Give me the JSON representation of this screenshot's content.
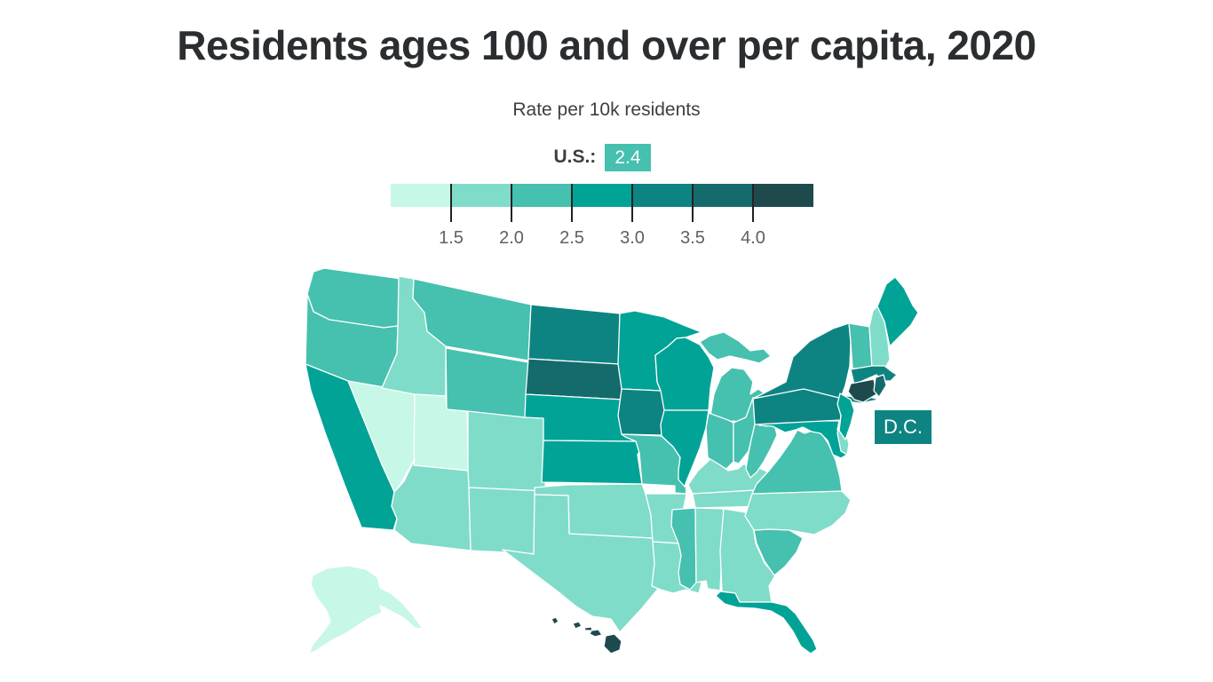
{
  "header": {
    "title": "Residents ages 100 and over per capita, 2020",
    "subtitle": "Rate per 10k residents"
  },
  "legend": {
    "us_label": "U.S.:",
    "us_value": "2.4",
    "us_badge_color": "#46c0af",
    "dc_badge_color": "#0e8482",
    "ticks": [
      "1.5",
      "2.0",
      "2.5",
      "3.0",
      "3.5",
      "4.0"
    ],
    "bins": [
      {
        "label": "<1.5",
        "color": "#c6f7e7"
      },
      {
        "label": "1.5–2.0",
        "color": "#7fdcc8"
      },
      {
        "label": "2.0–2.5",
        "color": "#46c0af"
      },
      {
        "label": "2.5–3.0",
        "color": "#00a396"
      },
      {
        "label": "3.0–3.5",
        "color": "#0e8482"
      },
      {
        "label": "3.5–4.0",
        "color": "#156a6c"
      },
      {
        "label": "4.0+",
        "color": "#1e4a4e"
      }
    ]
  },
  "dc_label": "D.C.",
  "chart_data": {
    "type": "choropleth-map",
    "title": "Residents ages 100 and over per capita, 2020",
    "unit": "Rate per 10k residents",
    "us_value": 2.4,
    "scale_ticks": [
      1.5,
      2.0,
      2.5,
      3.0,
      3.5,
      4.0
    ],
    "states": [
      {
        "code": "WA",
        "name": "Washington",
        "bin": 3,
        "rate_bin": "2.0–2.5"
      },
      {
        "code": "OR",
        "name": "Oregon",
        "bin": 3,
        "rate_bin": "2.0–2.5"
      },
      {
        "code": "CA",
        "name": "California",
        "bin": 4,
        "rate_bin": "2.5–3.0"
      },
      {
        "code": "NV",
        "name": "Nevada",
        "bin": 1,
        "rate_bin": "<1.5"
      },
      {
        "code": "ID",
        "name": "Idaho",
        "bin": 2,
        "rate_bin": "1.5–2.0"
      },
      {
        "code": "MT",
        "name": "Montana",
        "bin": 3,
        "rate_bin": "2.0–2.5"
      },
      {
        "code": "WY",
        "name": "Wyoming",
        "bin": 3,
        "rate_bin": "2.0–2.5"
      },
      {
        "code": "UT",
        "name": "Utah",
        "bin": 1,
        "rate_bin": "<1.5"
      },
      {
        "code": "CO",
        "name": "Colorado",
        "bin": 2,
        "rate_bin": "1.5–2.0"
      },
      {
        "code": "AZ",
        "name": "Arizona",
        "bin": 2,
        "rate_bin": "1.5–2.0"
      },
      {
        "code": "NM",
        "name": "New Mexico",
        "bin": 2,
        "rate_bin": "1.5–2.0"
      },
      {
        "code": "TX",
        "name": "Texas",
        "bin": 2,
        "rate_bin": "1.5–2.0"
      },
      {
        "code": "OK",
        "name": "Oklahoma",
        "bin": 2,
        "rate_bin": "1.5–2.0"
      },
      {
        "code": "KS",
        "name": "Kansas",
        "bin": 4,
        "rate_bin": "2.5–3.0"
      },
      {
        "code": "NE",
        "name": "Nebraska",
        "bin": 4,
        "rate_bin": "2.5–3.0"
      },
      {
        "code": "SD",
        "name": "South Dakota",
        "bin": 6,
        "rate_bin": "3.5–4.0"
      },
      {
        "code": "ND",
        "name": "North Dakota",
        "bin": 5,
        "rate_bin": "3.0–3.5"
      },
      {
        "code": "MN",
        "name": "Minnesota",
        "bin": 4,
        "rate_bin": "2.5–3.0"
      },
      {
        "code": "IA",
        "name": "Iowa",
        "bin": 5,
        "rate_bin": "3.0–3.5"
      },
      {
        "code": "MO",
        "name": "Missouri",
        "bin": 3,
        "rate_bin": "2.0–2.5"
      },
      {
        "code": "AR",
        "name": "Arkansas",
        "bin": 2,
        "rate_bin": "1.5–2.0"
      },
      {
        "code": "LA",
        "name": "Louisiana",
        "bin": 2,
        "rate_bin": "1.5–2.0"
      },
      {
        "code": "WI",
        "name": "Wisconsin",
        "bin": 4,
        "rate_bin": "2.5–3.0"
      },
      {
        "code": "IL",
        "name": "Illinois",
        "bin": 4,
        "rate_bin": "2.5–3.0"
      },
      {
        "code": "MI",
        "name": "Michigan",
        "bin": 3,
        "rate_bin": "2.0–2.5"
      },
      {
        "code": "IN",
        "name": "Indiana",
        "bin": 3,
        "rate_bin": "2.0–2.5"
      },
      {
        "code": "OH",
        "name": "Ohio",
        "bin": 3,
        "rate_bin": "2.0–2.5"
      },
      {
        "code": "KY",
        "name": "Kentucky",
        "bin": 2,
        "rate_bin": "1.5–2.0"
      },
      {
        "code": "TN",
        "name": "Tennessee",
        "bin": 2,
        "rate_bin": "1.5–2.0"
      },
      {
        "code": "MS",
        "name": "Mississippi",
        "bin": 3,
        "rate_bin": "2.0–2.5"
      },
      {
        "code": "AL",
        "name": "Alabama",
        "bin": 2,
        "rate_bin": "1.5–2.0"
      },
      {
        "code": "GA",
        "name": "Georgia",
        "bin": 2,
        "rate_bin": "1.5–2.0"
      },
      {
        "code": "FL",
        "name": "Florida",
        "bin": 4,
        "rate_bin": "2.5–3.0"
      },
      {
        "code": "SC",
        "name": "South Carolina",
        "bin": 3,
        "rate_bin": "2.0–2.5"
      },
      {
        "code": "NC",
        "name": "North Carolina",
        "bin": 2,
        "rate_bin": "1.5–2.0"
      },
      {
        "code": "VA",
        "name": "Virginia",
        "bin": 3,
        "rate_bin": "2.0–2.5"
      },
      {
        "code": "WV",
        "name": "West Virginia",
        "bin": 3,
        "rate_bin": "2.0–2.5"
      },
      {
        "code": "MD",
        "name": "Maryland",
        "bin": 4,
        "rate_bin": "2.5–3.0"
      },
      {
        "code": "DE",
        "name": "Delaware",
        "bin": 2,
        "rate_bin": "1.5–2.0"
      },
      {
        "code": "NJ",
        "name": "New Jersey",
        "bin": 4,
        "rate_bin": "2.5–3.0"
      },
      {
        "code": "PA",
        "name": "Pennsylvania",
        "bin": 5,
        "rate_bin": "3.0–3.5"
      },
      {
        "code": "NY",
        "name": "New York",
        "bin": 5,
        "rate_bin": "3.0–3.5"
      },
      {
        "code": "CT",
        "name": "Connecticut",
        "bin": 7,
        "rate_bin": "4.0+"
      },
      {
        "code": "RI",
        "name": "Rhode Island",
        "bin": 6,
        "rate_bin": "3.5–4.0"
      },
      {
        "code": "MA",
        "name": "Massachusetts",
        "bin": 5,
        "rate_bin": "3.0–3.5"
      },
      {
        "code": "VT",
        "name": "Vermont",
        "bin": 3,
        "rate_bin": "2.0–2.5"
      },
      {
        "code": "NH",
        "name": "New Hampshire",
        "bin": 2,
        "rate_bin": "1.5–2.0"
      },
      {
        "code": "ME",
        "name": "Maine",
        "bin": 4,
        "rate_bin": "2.5–3.0"
      },
      {
        "code": "AK",
        "name": "Alaska",
        "bin": 1,
        "rate_bin": "<1.5"
      },
      {
        "code": "HI",
        "name": "Hawaii",
        "bin": 7,
        "rate_bin": "4.0+"
      },
      {
        "code": "DC",
        "name": "District of Columbia",
        "bin": 5,
        "rate_bin": "3.0–3.5"
      }
    ]
  }
}
